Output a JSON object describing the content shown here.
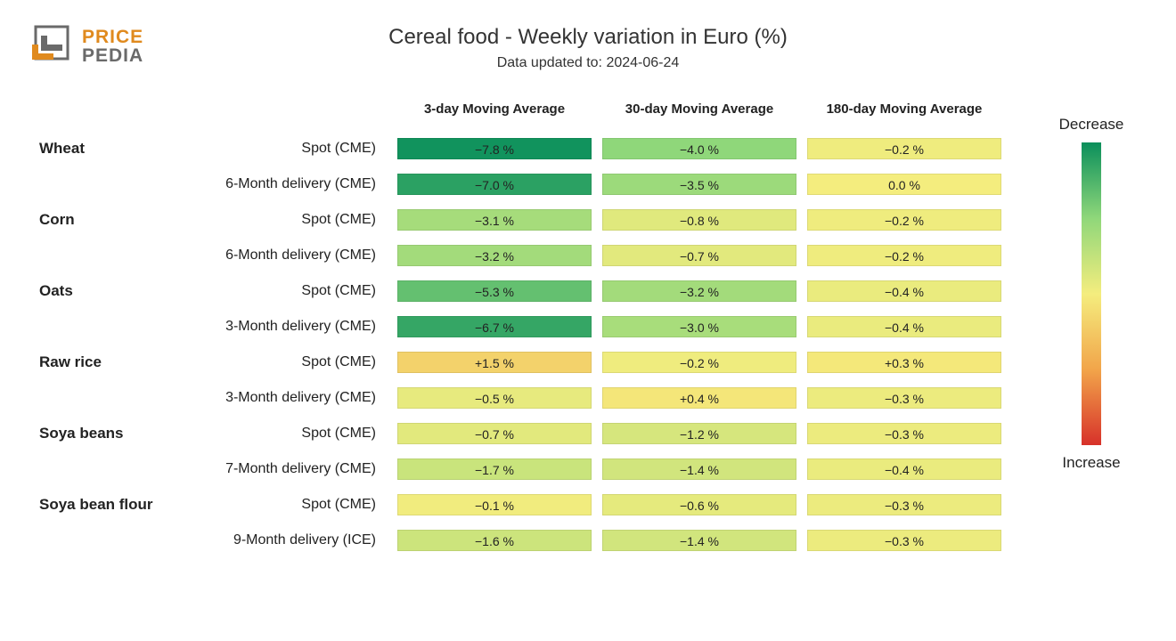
{
  "logo": {
    "brand_top": "PRICE",
    "brand_bottom": "PEDIA",
    "orange": "#e08a1e",
    "gray": "#6a6a6a"
  },
  "title": "Cereal food - Weekly variation in Euro (%)",
  "subtitle": "Data updated to: 2024-06-24",
  "columns": [
    "3-day Moving Average",
    "30-day Moving Average",
    "180-day Moving Average"
  ],
  "legend": {
    "top": "Decrease",
    "bottom": "Increase",
    "gradient_stops": [
      "#0a8f5b",
      "#8fd77a",
      "#f4ed7e",
      "#f2a54a",
      "#d7312a"
    ]
  },
  "color_scale": {
    "min": -8.0,
    "max": 8.0,
    "stops": [
      {
        "pos": 0.0,
        "color": "#0a8f5b"
      },
      {
        "pos": 0.25,
        "color": "#8fd77a"
      },
      {
        "pos": 0.5,
        "color": "#f4ed7e"
      },
      {
        "pos": 0.75,
        "color": "#f2a54a"
      },
      {
        "pos": 1.0,
        "color": "#d7312a"
      }
    ]
  },
  "font": {
    "title_size": 24,
    "subtitle_size": 16,
    "header_size": 15,
    "cell_size": 14,
    "label_size": 16,
    "cat_size": 17
  },
  "rows": [
    {
      "category": "Wheat",
      "sub": "Spot (CME)",
      "vals": [
        -7.8,
        -4.0,
        -0.2
      ]
    },
    {
      "category": "",
      "sub": "6-Month delivery (CME)",
      "vals": [
        -7.0,
        -3.5,
        0.0
      ]
    },
    {
      "category": "Corn",
      "sub": "Spot (CME)",
      "vals": [
        -3.1,
        -0.8,
        -0.2
      ]
    },
    {
      "category": "",
      "sub": "6-Month delivery (CME)",
      "vals": [
        -3.2,
        -0.7,
        -0.2
      ]
    },
    {
      "category": "Oats",
      "sub": "Spot (CME)",
      "vals": [
        -5.3,
        -3.2,
        -0.4
      ]
    },
    {
      "category": "",
      "sub": "3-Month delivery (CME)",
      "vals": [
        -6.7,
        -3.0,
        -0.4
      ]
    },
    {
      "category": "Raw rice",
      "sub": "Spot (CME)",
      "vals": [
        1.5,
        -0.2,
        0.3
      ]
    },
    {
      "category": "",
      "sub": "3-Month delivery (CME)",
      "vals": [
        -0.5,
        0.4,
        -0.3
      ]
    },
    {
      "category": "Soya beans",
      "sub": "Spot (CME)",
      "vals": [
        -0.7,
        -1.2,
        -0.3
      ]
    },
    {
      "category": "",
      "sub": "7-Month delivery (CME)",
      "vals": [
        -1.7,
        -1.4,
        -0.4
      ]
    },
    {
      "category": "Soya bean flour",
      "sub": "Spot (CME)",
      "vals": [
        -0.1,
        -0.6,
        -0.3
      ]
    },
    {
      "category": "",
      "sub": "9-Month delivery (ICE)",
      "vals": [
        -1.6,
        -1.4,
        -0.3
      ]
    }
  ]
}
